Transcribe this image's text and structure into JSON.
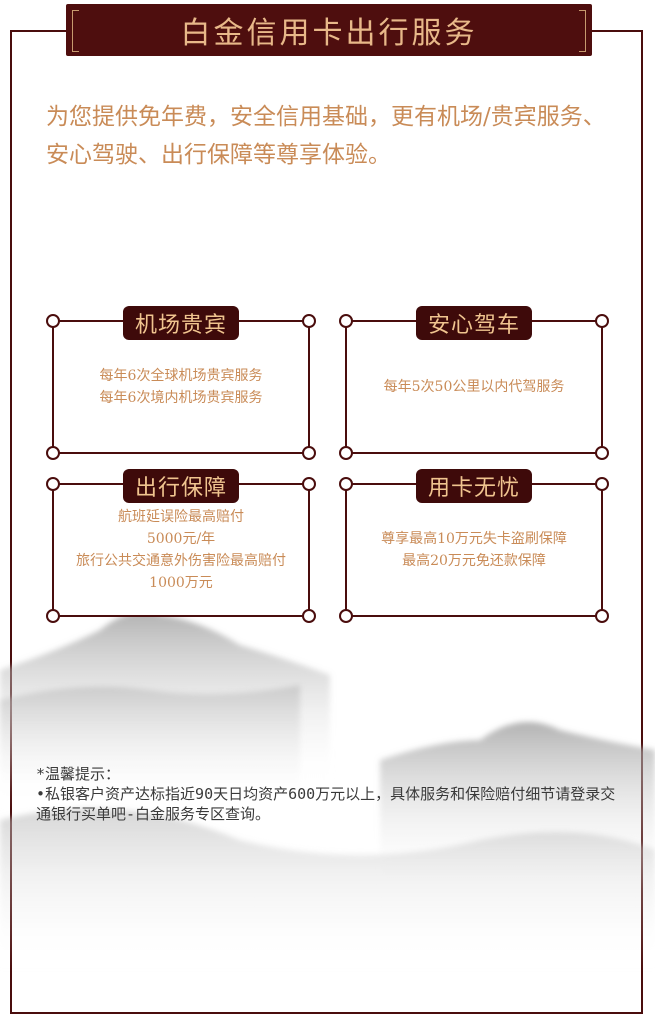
{
  "header": {
    "title": "白金信用卡出行服务"
  },
  "intro": "为您提供免年费，安全信用基础，更有机场/贵宾服务、安心驾驶、出行保障等尊享体验。",
  "cards": [
    {
      "label": "机场贵宾",
      "lines": [
        "每年6次全球机场贵宾服务",
        "每年6次境内机场贵宾服务"
      ]
    },
    {
      "label": "安心驾车",
      "lines": [
        "每年5次50公里以内代驾服务"
      ]
    },
    {
      "label": "出行保障",
      "lines": [
        "航班延误险最高赔付",
        "5000元/年",
        "旅行公共交通意外伤害险最高赔付",
        "1000万元"
      ]
    },
    {
      "label": "用卡无忧",
      "lines": [
        "尊享最高10万元失卡盗刷保障",
        "最高20万元免还款保障"
      ]
    }
  ],
  "notice": {
    "title": "*温馨提示：",
    "body": "•私银客户资产达标指近90天日均资产600万元以上，具体服务和保险赔付细节请登录交通银行买单吧-白金服务专区查询。"
  },
  "colors": {
    "brand_dark": "#4e0e0e",
    "accent_text": "#c98b57",
    "label_text": "#f0c48f"
  }
}
